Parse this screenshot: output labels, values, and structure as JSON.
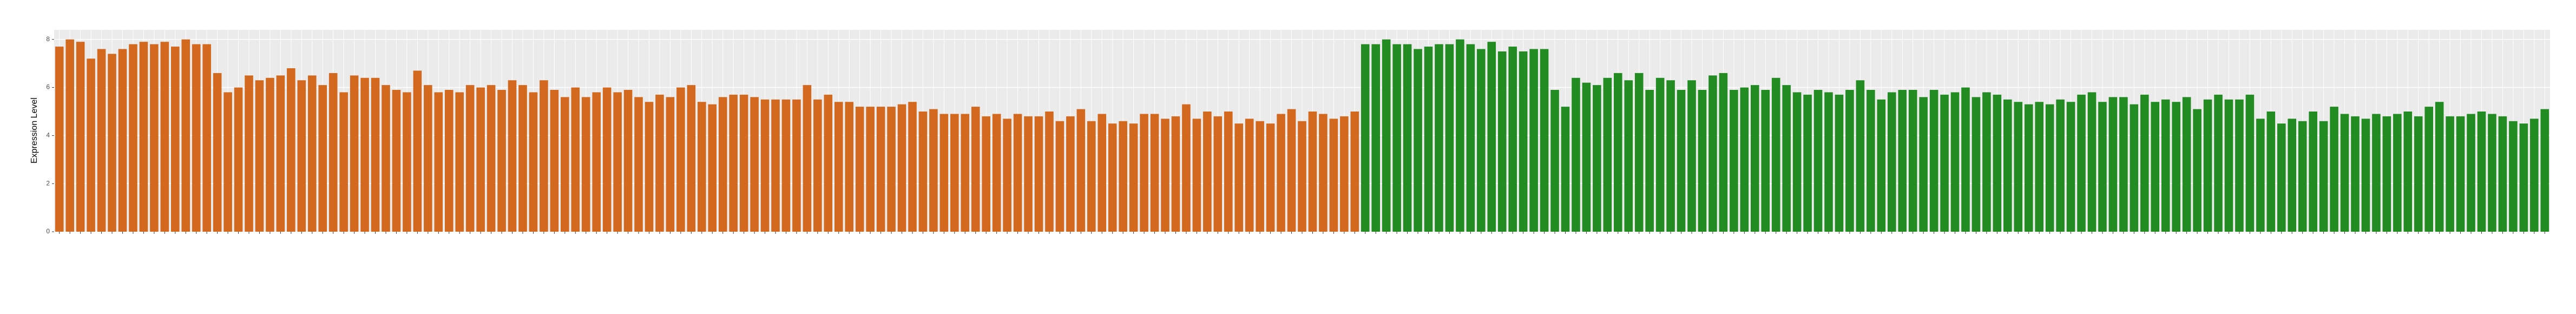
{
  "chart_data": {
    "type": "bar",
    "ylabel": "Expression Level",
    "ylim": [
      0,
      8.4
    ],
    "yticks": [
      0,
      2,
      4,
      6,
      8
    ],
    "grid": true,
    "categories": [
      null,
      null,
      null,
      null,
      null,
      null,
      null,
      null,
      null,
      null,
      null,
      null,
      null,
      null,
      null,
      null,
      null,
      null,
      null,
      null,
      null,
      null,
      null,
      null,
      null,
      null,
      null,
      null,
      null,
      null,
      null,
      null,
      null,
      null,
      null,
      null,
      null,
      null,
      null,
      null,
      null,
      null,
      null,
      null,
      null,
      null,
      null,
      null,
      null,
      null,
      null,
      null,
      null,
      null,
      null,
      null,
      null,
      null,
      null,
      null,
      null,
      null,
      null,
      null,
      null,
      null,
      null,
      null,
      null,
      null,
      null,
      null,
      null,
      null,
      null,
      null,
      null,
      null,
      null,
      null,
      null,
      null,
      null,
      null,
      null,
      null,
      null,
      null,
      null,
      null,
      null,
      null,
      null,
      null,
      null,
      null,
      null,
      null,
      null,
      null,
      null,
      null,
      null,
      null,
      null,
      null,
      null,
      null,
      null,
      null,
      null,
      null,
      null,
      null,
      null,
      null,
      null,
      null,
      null,
      null,
      null,
      null,
      null,
      null,
      null,
      null,
      null,
      null,
      null,
      null,
      null,
      null,
      null,
      null,
      null,
      null,
      null,
      null,
      null,
      null,
      null,
      null,
      null,
      null,
      null,
      null,
      null,
      null,
      null,
      null,
      null,
      null,
      null,
      null,
      null,
      null,
      null,
      null,
      null,
      null,
      null,
      null,
      null,
      null,
      null,
      null,
      null,
      null,
      null,
      null,
      null,
      null,
      null,
      null,
      null,
      null,
      null,
      null,
      null,
      null,
      null,
      null,
      null,
      null,
      null,
      null,
      null,
      null,
      null,
      null,
      null,
      null,
      null,
      null,
      null,
      null,
      null,
      null,
      null,
      null,
      null,
      null,
      null,
      null,
      null,
      null,
      null,
      null,
      null,
      null,
      null,
      null,
      null,
      null,
      null,
      null,
      null,
      null,
      null,
      null,
      null,
      null,
      null,
      null,
      null,
      null,
      null,
      null,
      null,
      null,
      null,
      null,
      null,
      null,
      null,
      null,
      null
    ],
    "values": [
      7.7,
      8.0,
      7.9,
      7.2,
      7.6,
      7.4,
      7.6,
      7.8,
      7.9,
      7.8,
      7.9,
      7.7,
      8.0,
      7.8,
      7.8,
      6.6,
      5.8,
      6.0,
      6.5,
      6.3,
      6.4,
      6.5,
      6.8,
      6.3,
      6.5,
      6.1,
      6.6,
      5.8,
      6.5,
      6.4,
      6.4,
      6.1,
      5.9,
      5.8,
      6.7,
      6.1,
      5.8,
      5.9,
      5.8,
      6.1,
      6.0,
      6.1,
      5.9,
      6.3,
      6.1,
      5.8,
      6.3,
      5.9,
      5.6,
      6.0,
      5.6,
      5.8,
      6.0,
      5.8,
      5.9,
      5.6,
      5.4,
      5.7,
      5.6,
      6.0,
      6.1,
      5.4,
      5.3,
      5.6,
      5.7,
      5.7,
      5.6,
      5.5,
      5.5,
      5.5,
      5.5,
      6.1,
      5.5,
      5.7,
      5.4,
      5.4,
      5.2,
      5.2,
      5.2,
      5.2,
      5.3,
      5.4,
      5.0,
      5.1,
      4.9,
      4.9,
      4.9,
      5.2,
      4.8,
      4.9,
      4.7,
      4.9,
      4.8,
      4.8,
      5.0,
      4.6,
      4.8,
      5.1,
      4.6,
      4.9,
      4.5,
      4.6,
      4.5,
      4.9,
      4.9,
      4.7,
      4.8,
      5.3,
      4.7,
      5.0,
      4.8,
      5.0,
      4.5,
      4.7,
      4.6,
      4.5,
      4.9,
      5.1,
      4.6,
      5.0,
      4.9,
      4.7,
      4.8,
      5.0,
      7.8,
      7.8,
      8.0,
      7.8,
      7.8,
      7.6,
      7.7,
      7.8,
      7.8,
      8.0,
      7.8,
      7.6,
      7.9,
      7.5,
      7.7,
      7.5,
      7.6,
      7.6,
      5.9,
      5.2,
      6.4,
      6.2,
      6.1,
      6.4,
      6.6,
      6.3,
      6.6,
      5.9,
      6.4,
      6.3,
      5.9,
      6.3,
      5.9,
      6.5,
      6.6,
      5.9,
      6.0,
      6.1,
      5.9,
      6.4,
      6.1,
      5.8,
      5.7,
      5.9,
      5.8,
      5.7,
      5.9,
      6.3,
      5.9,
      5.5,
      5.8,
      5.9,
      5.9,
      5.6,
      5.9,
      5.7,
      5.8,
      6.0,
      5.6,
      5.8,
      5.7,
      5.5,
      5.4,
      5.3,
      5.4,
      5.3,
      5.5,
      5.4,
      5.7,
      5.8,
      5.4,
      5.6,
      5.6,
      5.3,
      5.7,
      5.4,
      5.5,
      5.4,
      5.6,
      5.1,
      5.5,
      5.7,
      5.5,
      5.5,
      5.7,
      4.7,
      5.0,
      4.5,
      4.7,
      4.6,
      5.0,
      4.6,
      5.2,
      4.9,
      4.8,
      4.7,
      4.9,
      4.8,
      4.9,
      5.0,
      4.8,
      5.2,
      5.4,
      4.8,
      4.8,
      4.9,
      5.0,
      4.9,
      4.8,
      4.6,
      4.5,
      4.7,
      5.1
    ],
    "colors": [
      "#d2691e",
      "#d2691e",
      "#d2691e",
      "#d2691e",
      "#d2691e",
      "#d2691e",
      "#d2691e",
      "#d2691e",
      "#d2691e",
      "#d2691e",
      "#d2691e",
      "#d2691e",
      "#d2691e",
      "#d2691e",
      "#d2691e",
      "#d2691e",
      "#d2691e",
      "#d2691e",
      "#d2691e",
      "#d2691e",
      "#d2691e",
      "#d2691e",
      "#d2691e",
      "#d2691e",
      "#d2691e",
      "#d2691e",
      "#d2691e",
      "#d2691e",
      "#d2691e",
      "#d2691e",
      "#d2691e",
      "#d2691e",
      "#d2691e",
      "#d2691e",
      "#d2691e",
      "#d2691e",
      "#d2691e",
      "#d2691e",
      "#d2691e",
      "#d2691e",
      "#d2691e",
      "#d2691e",
      "#d2691e",
      "#d2691e",
      "#d2691e",
      "#d2691e",
      "#d2691e",
      "#d2691e",
      "#d2691e",
      "#d2691e",
      "#d2691e",
      "#d2691e",
      "#d2691e",
      "#d2691e",
      "#d2691e",
      "#d2691e",
      "#d2691e",
      "#d2691e",
      "#d2691e",
      "#d2691e",
      "#d2691e",
      "#d2691e",
      "#d2691e",
      "#d2691e",
      "#d2691e",
      "#d2691e",
      "#d2691e",
      "#d2691e",
      "#d2691e",
      "#d2691e",
      "#d2691e",
      "#d2691e",
      "#d2691e",
      "#d2691e",
      "#d2691e",
      "#d2691e",
      "#d2691e",
      "#d2691e",
      "#d2691e",
      "#d2691e",
      "#d2691e",
      "#d2691e",
      "#d2691e",
      "#d2691e",
      "#d2691e",
      "#d2691e",
      "#d2691e",
      "#d2691e",
      "#d2691e",
      "#d2691e",
      "#d2691e",
      "#d2691e",
      "#d2691e",
      "#d2691e",
      "#d2691e",
      "#d2691e",
      "#d2691e",
      "#d2691e",
      "#d2691e",
      "#d2691e",
      "#d2691e",
      "#d2691e",
      "#d2691e",
      "#d2691e",
      "#d2691e",
      "#d2691e",
      "#d2691e",
      "#d2691e",
      "#d2691e",
      "#d2691e",
      "#d2691e",
      "#d2691e",
      "#d2691e",
      "#d2691e",
      "#d2691e",
      "#d2691e",
      "#d2691e",
      "#d2691e",
      "#d2691e",
      "#d2691e",
      "#d2691e",
      "#d2691e",
      "#d2691e",
      "#d2691e",
      "#228b22",
      "#228b22",
      "#228b22",
      "#228b22",
      "#228b22",
      "#228b22",
      "#228b22",
      "#228b22",
      "#228b22",
      "#228b22",
      "#228b22",
      "#228b22",
      "#228b22",
      "#228b22",
      "#228b22",
      "#228b22",
      "#228b22",
      "#228b22",
      "#228b22",
      "#228b22",
      "#228b22",
      "#228b22",
      "#228b22",
      "#228b22",
      "#228b22",
      "#228b22",
      "#228b22",
      "#228b22",
      "#228b22",
      "#228b22",
      "#228b22",
      "#228b22",
      "#228b22",
      "#228b22",
      "#228b22",
      "#228b22",
      "#228b22",
      "#228b22",
      "#228b22",
      "#228b22",
      "#228b22",
      "#228b22",
      "#228b22",
      "#228b22",
      "#228b22",
      "#228b22",
      "#228b22",
      "#228b22",
      "#228b22",
      "#228b22",
      "#228b22",
      "#228b22",
      "#228b22",
      "#228b22",
      "#228b22",
      "#228b22",
      "#228b22",
      "#228b22",
      "#228b22",
      "#228b22",
      "#228b22",
      "#228b22",
      "#228b22",
      "#228b22",
      "#228b22",
      "#228b22",
      "#228b22",
      "#228b22",
      "#228b22",
      "#228b22",
      "#228b22",
      "#228b22",
      "#228b22",
      "#228b22",
      "#228b22",
      "#228b22",
      "#228b22",
      "#228b22",
      "#228b22",
      "#228b22",
      "#228b22",
      "#228b22",
      "#228b22",
      "#228b22",
      "#228b22",
      "#228b22",
      "#228b22",
      "#228b22",
      "#228b22",
      "#228b22",
      "#228b22",
      "#228b22",
      "#228b22",
      "#228b22",
      "#228b22",
      "#228b22",
      "#228b22",
      "#228b22",
      "#228b22",
      "#228b22",
      "#228b22",
      "#228b22",
      "#228b22",
      "#228b22",
      "#228b22",
      "#228b22",
      "#228b22",
      "#228b22",
      "#228b22",
      "#228b22",
      "#228b22",
      "#228b22",
      "#228b22"
    ]
  }
}
